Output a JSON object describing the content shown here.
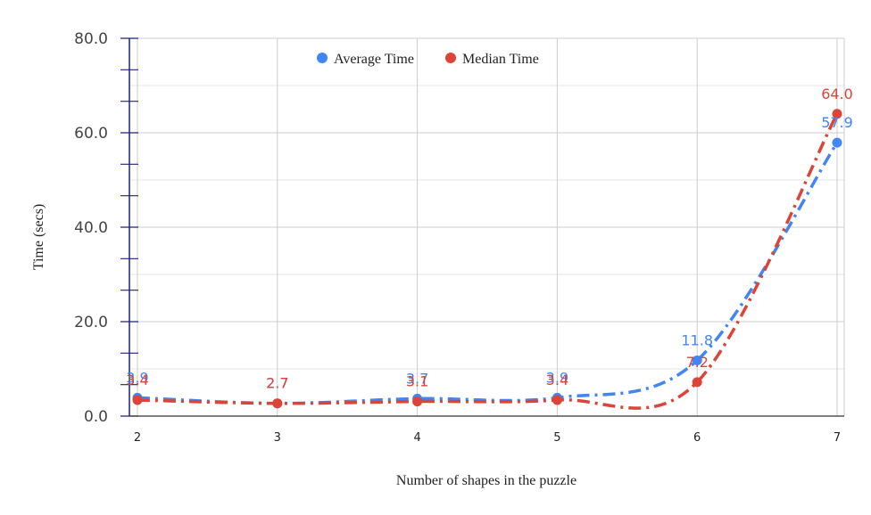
{
  "chart_data": {
    "type": "line",
    "title": "",
    "xlabel": "Number of shapes in the puzzle",
    "ylabel": "Time (secs)",
    "categories": [
      "2",
      "3",
      "4",
      "5",
      "6",
      "7"
    ],
    "x": [
      2,
      3,
      4,
      5,
      6,
      7
    ],
    "ylim": [
      0,
      80
    ],
    "yticks": [
      "0.0",
      "20.0",
      "40.0",
      "60.0",
      "80.0"
    ],
    "grid": true,
    "legend_position": "top",
    "series": [
      {
        "name": "Average Time",
        "color": "#4285F4",
        "values": [
          3.9,
          2.7,
          3.7,
          3.9,
          11.8,
          57.9
        ],
        "labels": [
          "3.9",
          "2.7",
          "3.7",
          "3.9",
          "11.8",
          "57.9"
        ],
        "line_style": "dash-dot",
        "smooth": true
      },
      {
        "name": "Median Time",
        "color": "#DB4437",
        "values": [
          3.4,
          2.7,
          3.1,
          3.4,
          7.2,
          64.0
        ],
        "labels": [
          "3.4",
          "2.7",
          "3.1",
          "3.4",
          "7.2",
          "64.0"
        ],
        "line_style": "dash-dot",
        "smooth": true
      }
    ]
  }
}
